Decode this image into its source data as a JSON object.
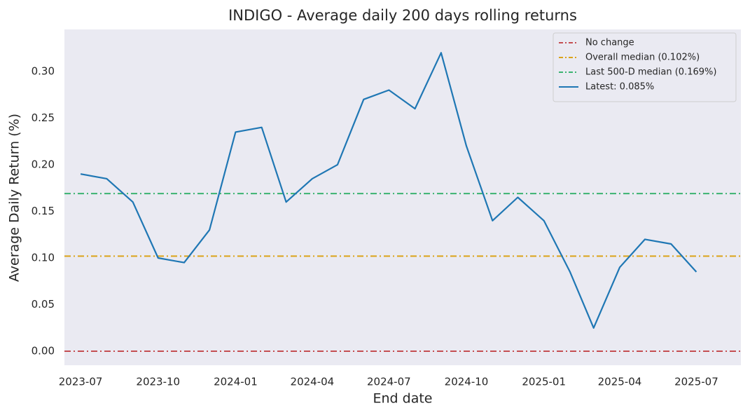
{
  "chart_data": {
    "type": "line",
    "title": "INDIGO - Average daily 200 days rolling returns",
    "xlabel": "End date",
    "ylabel": "Average Daily Return (%)",
    "x": [
      "2023-07",
      "2023-08",
      "2023-09",
      "2023-10",
      "2023-11",
      "2023-12",
      "2024-01",
      "2024-02",
      "2024-03",
      "2024-04",
      "2024-05",
      "2024-06",
      "2024-07",
      "2024-08",
      "2024-09",
      "2024-10",
      "2024-11",
      "2024-12",
      "2025-01",
      "2025-02",
      "2025-03",
      "2025-04",
      "2025-05",
      "2025-06",
      "2025-07"
    ],
    "series": [
      {
        "name": "Latest: 0.085%",
        "color": "#1f77b4",
        "values": [
          0.19,
          0.185,
          0.16,
          0.1,
          0.095,
          0.13,
          0.235,
          0.24,
          0.16,
          0.185,
          0.2,
          0.27,
          0.28,
          0.26,
          0.32,
          0.22,
          0.14,
          0.165,
          0.14,
          0.085,
          0.025,
          0.09,
          0.12,
          0.115,
          0.085
        ]
      }
    ],
    "hlines": [
      {
        "name": "No change",
        "color": "#c44e52",
        "value": 0
      },
      {
        "name": "Overall median (0.102%)",
        "color": "#dba31a",
        "value": 0.102
      },
      {
        "name": "Last 500-D median (0.169%)",
        "color": "#3cb371",
        "value": 0.169
      }
    ],
    "xlim": [
      "2023-06",
      "2025-09"
    ],
    "xticks": [
      "2023-07",
      "2023-10",
      "2024-01",
      "2024-04",
      "2024-07",
      "2024-10",
      "2025-01",
      "2025-04",
      "2025-07"
    ],
    "ylim": [
      -0.015,
      0.345
    ],
    "yticks": [
      {
        "value": 0,
        "label": "0.00"
      },
      0.05,
      {
        "value": 0.1,
        "label": "0.10"
      },
      0.15,
      {
        "value": 0.2,
        "label": "0.20"
      },
      0.25,
      {
        "value": 0.3,
        "label": "0.30"
      }
    ],
    "grid": false,
    "legend": "upper right"
  }
}
